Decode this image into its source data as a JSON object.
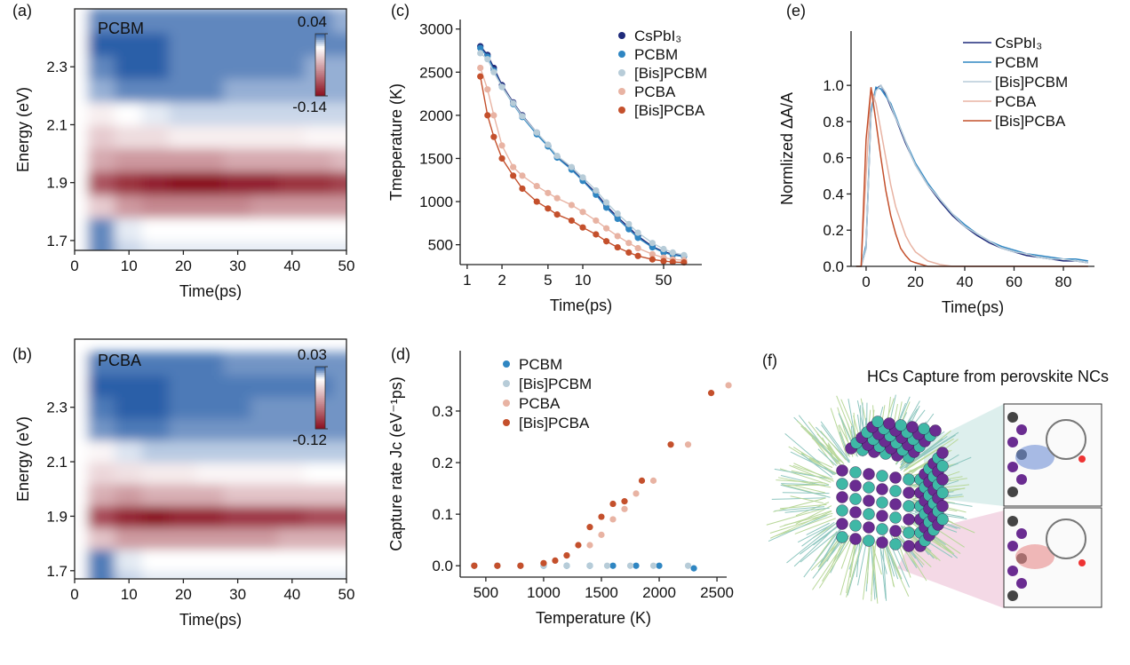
{
  "chart_data": [
    {
      "type": "heatmap",
      "label": "(a)",
      "annotation": "PCBM",
      "xlabel": "Time(ps)",
      "ylabel": "Energy (eV)",
      "x": [
        0,
        5,
        10,
        15,
        20,
        25,
        30,
        35,
        40,
        45,
        50
      ],
      "y": [
        1.66,
        1.74,
        1.82,
        1.9,
        1.98,
        2.06,
        2.14,
        2.22,
        2.3,
        2.38,
        2.46
      ],
      "values": [
        [
          0,
          0.03,
          0.01,
          0.005,
          0.005,
          0.005,
          0.005,
          0.005,
          0.005,
          0.005,
          0.005
        ],
        [
          0,
          0.03,
          0.005,
          0,
          0,
          0,
          0,
          0,
          0,
          0,
          0
        ],
        [
          0,
          -0.03,
          -0.06,
          -0.07,
          -0.07,
          -0.07,
          -0.07,
          -0.06,
          -0.06,
          -0.06,
          -0.06
        ],
        [
          0,
          -0.1,
          -0.12,
          -0.13,
          -0.14,
          -0.14,
          -0.13,
          -0.13,
          -0.12,
          -0.12,
          -0.11
        ],
        [
          0,
          -0.05,
          -0.06,
          -0.06,
          -0.06,
          -0.06,
          -0.05,
          -0.05,
          -0.05,
          -0.05,
          -0.04
        ],
        [
          0,
          -0.03,
          -0.02,
          -0.02,
          -0.01,
          -0.01,
          -0.01,
          -0.01,
          -0.01,
          -0.005,
          -0.005
        ],
        [
          0,
          -0.01,
          0,
          0.005,
          0.01,
          0.01,
          0.01,
          0.01,
          0.01,
          0.01,
          0.01
        ],
        [
          0,
          0.02,
          0.03,
          0.03,
          0.03,
          0.03,
          0.02,
          0.02,
          0.02,
          0.02,
          0.02
        ],
        [
          0,
          0.03,
          0.04,
          0.04,
          0.03,
          0.03,
          0.03,
          0.03,
          0.03,
          0.02,
          0.02
        ],
        [
          0,
          0.04,
          0.04,
          0.04,
          0.03,
          0.03,
          0.03,
          0.03,
          0.03,
          0.03,
          0.03
        ],
        [
          0,
          0.03,
          0.03,
          0.03,
          0.03,
          0.03,
          0.03,
          0.03,
          0.03,
          0.03,
          0.02
        ]
      ],
      "xlim": [
        0,
        50
      ],
      "ylim": [
        1.666,
        2.5
      ],
      "xticks": [
        0,
        10,
        20,
        30,
        40,
        50
      ],
      "yticks": [
        1.7,
        1.9,
        2.1,
        2.3
      ],
      "zlim": [
        -0.14,
        0.04
      ],
      "zticks": [
        0.04,
        -0.14
      ],
      "colors": {
        "positive": "#2b5fa8",
        "negative": "#8a0e1e"
      }
    },
    {
      "type": "heatmap",
      "label": "(b)",
      "annotation": "PCBA",
      "xlabel": "Time(ps)",
      "ylabel": "Energy (eV)",
      "x": [
        0,
        5,
        10,
        15,
        20,
        25,
        30,
        35,
        40,
        45,
        50
      ],
      "y": [
        1.66,
        1.74,
        1.82,
        1.9,
        1.98,
        2.06,
        2.14,
        2.22,
        2.3,
        2.38,
        2.46
      ],
      "values": [
        [
          0,
          0.025,
          0.008,
          0.004,
          0.004,
          0.004,
          0.004,
          0.004,
          0.004,
          0.004,
          0.004
        ],
        [
          0,
          0.025,
          0.004,
          0,
          0,
          0,
          0,
          0,
          0,
          0,
          0
        ],
        [
          0,
          -0.03,
          -0.05,
          -0.05,
          -0.05,
          -0.05,
          -0.05,
          -0.05,
          -0.04,
          -0.04,
          -0.04
        ],
        [
          0,
          -0.09,
          -0.11,
          -0.12,
          -0.11,
          -0.11,
          -0.1,
          -0.1,
          -0.1,
          -0.09,
          -0.09
        ],
        [
          0,
          -0.04,
          -0.05,
          -0.04,
          -0.04,
          -0.04,
          -0.03,
          -0.03,
          -0.03,
          -0.03,
          -0.03
        ],
        [
          0,
          -0.02,
          -0.015,
          -0.01,
          -0.01,
          -0.005,
          -0.005,
          -0.005,
          -0.005,
          0,
          0
        ],
        [
          0,
          -0.005,
          0.005,
          0.01,
          0.01,
          0.01,
          0.01,
          0.01,
          0.01,
          0.01,
          0.01
        ],
        [
          0,
          0.02,
          0.025,
          0.025,
          0.02,
          0.02,
          0.02,
          0.02,
          0.02,
          0.02,
          0.02
        ],
        [
          0,
          0.025,
          0.03,
          0.03,
          0.025,
          0.025,
          0.025,
          0.02,
          0.02,
          0.02,
          0.02
        ],
        [
          0,
          0.03,
          0.03,
          0.03,
          0.025,
          0.025,
          0.025,
          0.025,
          0.025,
          0.025,
          0.02
        ],
        [
          0,
          0.025,
          0.025,
          0.025,
          0.025,
          0.025,
          0.02,
          0.02,
          0.02,
          0.02,
          0.02
        ]
      ],
      "xlim": [
        0,
        50
      ],
      "ylim": [
        1.67,
        2.55
      ],
      "xticks": [
        0,
        10,
        20,
        30,
        40,
        50
      ],
      "yticks": [
        1.7,
        1.9,
        2.1,
        2.3
      ],
      "zlim": [
        -0.12,
        0.03
      ],
      "zticks": [
        0.03,
        -0.12
      ],
      "colors": {
        "positive": "#2b5fa8",
        "negative": "#8a0e1e"
      }
    },
    {
      "type": "scatter",
      "label": "(c)",
      "xlabel": "Time(ps)",
      "ylabel": "Tmeperature  (K)",
      "log_x": true,
      "fit_line": true,
      "x": [
        1.3,
        1.5,
        1.7,
        2,
        2.5,
        3,
        4,
        5,
        6,
        8,
        10,
        13,
        16,
        20,
        25,
        30,
        40,
        50,
        60,
        75
      ],
      "series": [
        {
          "name": "CsPbI₃",
          "color": "#1f2a7a",
          "values": [
            2800,
            2700,
            2550,
            2350,
            2150,
            2000,
            1800,
            1650,
            1520,
            1380,
            1250,
            1100,
            950,
            820,
            700,
            600,
            480,
            420,
            390,
            370
          ]
        },
        {
          "name": "PCBM",
          "color": "#2f86c2",
          "values": [
            2780,
            2680,
            2520,
            2330,
            2130,
            1980,
            1780,
            1640,
            1510,
            1370,
            1240,
            1080,
            930,
            800,
            680,
            580,
            470,
            410,
            380,
            365
          ]
        },
        {
          "name": "[Bis]PCBM",
          "color": "#b7ccd8",
          "values": [
            2720,
            2650,
            2500,
            2330,
            2140,
            1990,
            1800,
            1660,
            1530,
            1400,
            1280,
            1130,
            990,
            860,
            740,
            640,
            520,
            450,
            410,
            380
          ]
        },
        {
          "name": "PCBA",
          "color": "#e8b3a3",
          "values": [
            2550,
            2300,
            2000,
            1650,
            1400,
            1300,
            1180,
            1100,
            1040,
            960,
            880,
            780,
            690,
            600,
            520,
            460,
            390,
            350,
            330,
            320
          ]
        },
        {
          "name": "[Bis]PCBA",
          "color": "#c4502c",
          "values": [
            2450,
            2000,
            1750,
            1500,
            1300,
            1150,
            1000,
            920,
            850,
            780,
            700,
            620,
            540,
            470,
            410,
            370,
            330,
            310,
            300,
            295
          ]
        }
      ],
      "xlim": [
        0.87,
        107
      ],
      "ylim": [
        270,
        3110
      ],
      "xticks": [
        1,
        2,
        5,
        10,
        50
      ],
      "yticks": [
        500,
        1000,
        1500,
        2000,
        2500,
        3000
      ]
    },
    {
      "type": "scatter",
      "label": "(d)",
      "xlabel": "Temperature (K)",
      "ylabel": "Capture rate Jc (eV⁻¹ps)",
      "series": [
        {
          "name": "PCBM",
          "color": "#2f86c2",
          "x": [
            400,
            600,
            800,
            1000,
            1200,
            1400,
            1600,
            1800,
            2000,
            2300
          ],
          "values": [
            0,
            0,
            0,
            0,
            0,
            0,
            0,
            0,
            0,
            -0.005
          ]
        },
        {
          "name": "[Bis]PCBM",
          "color": "#b7ccd8",
          "x": [
            400,
            600,
            800,
            1000,
            1200,
            1400,
            1550,
            1750,
            1950,
            2250
          ],
          "values": [
            0,
            0,
            0,
            0,
            0,
            0,
            0,
            0,
            0,
            0
          ]
        },
        {
          "name": "PCBA",
          "color": "#e8b3a3",
          "x": [
            400,
            600,
            800,
            1000,
            1200,
            1400,
            1500,
            1600,
            1700,
            1800,
            1950,
            2250,
            2600
          ],
          "values": [
            0,
            0,
            0,
            0.005,
            0.02,
            0.04,
            0.06,
            0.09,
            0.11,
            0.14,
            0.165,
            0.235,
            0.35
          ]
        },
        {
          "name": "[Bis]PCBA",
          "color": "#c4502c",
          "x": [
            400,
            600,
            800,
            1000,
            1100,
            1200,
            1300,
            1400,
            1500,
            1600,
            1700,
            1850,
            2100,
            2450
          ],
          "values": [
            0,
            0,
            0,
            0.005,
            0.01,
            0.02,
            0.04,
            0.075,
            0.095,
            0.12,
            0.125,
            0.165,
            0.235,
            0.335
          ]
        }
      ],
      "xlim": [
        278,
        2584
      ],
      "ylim": [
        -0.022,
        0.417
      ],
      "xticks": [
        500,
        1000,
        1500,
        2000,
        2500
      ],
      "yticks": [
        {
          "value": 0,
          "label": "0.0"
        },
        0.1,
        0.2,
        0.3
      ]
    },
    {
      "type": "line",
      "label": "(e)",
      "xlabel": "Time(ps)",
      "ylabel": "Normlized ΔA/A",
      "x": [
        -4,
        -2,
        0,
        2,
        4,
        6,
        8,
        10,
        12,
        14,
        16,
        18,
        20,
        25,
        30,
        35,
        40,
        45,
        50,
        55,
        60,
        65,
        70,
        75,
        80,
        85,
        90
      ],
      "series": [
        {
          "name": "CsPbI₃",
          "color": "#1f2a7a",
          "values": [
            0,
            0,
            0.1,
            0.85,
            0.98,
            1.0,
            0.95,
            0.88,
            0.82,
            0.75,
            0.68,
            0.62,
            0.56,
            0.45,
            0.36,
            0.28,
            0.22,
            0.17,
            0.13,
            0.1,
            0.08,
            0.06,
            0.05,
            0.04,
            0.03,
            0.03,
            0.02
          ]
        },
        {
          "name": "PCBM",
          "color": "#2f86c2",
          "values": [
            0,
            0,
            0.12,
            0.86,
            0.99,
            0.98,
            0.94,
            0.9,
            0.83,
            0.76,
            0.69,
            0.63,
            0.57,
            0.46,
            0.37,
            0.29,
            0.23,
            0.18,
            0.14,
            0.11,
            0.09,
            0.07,
            0.06,
            0.05,
            0.04,
            0.04,
            0.03
          ]
        },
        {
          "name": "[Bis]PCBM",
          "color": "#b7ccd8",
          "values": [
            0,
            0,
            0.1,
            0.84,
            0.97,
            1.0,
            0.96,
            0.89,
            0.82,
            0.76,
            0.69,
            0.62,
            0.56,
            0.45,
            0.37,
            0.29,
            0.22,
            0.18,
            0.14,
            0.1,
            0.08,
            0.07,
            0.05,
            0.04,
            0.04,
            0.03,
            0.02
          ]
        },
        {
          "name": "PCBA",
          "color": "#e8b3a3",
          "values": [
            0,
            0,
            0.5,
            0.98,
            0.9,
            0.75,
            0.6,
            0.45,
            0.33,
            0.25,
            0.17,
            0.12,
            0.08,
            0.03,
            0.01,
            0,
            0,
            0,
            0,
            0,
            0,
            0,
            0,
            0,
            0,
            0,
            0
          ]
        },
        {
          "name": "[Bis]PCBA",
          "color": "#c4502c",
          "values": [
            0,
            0,
            0.7,
            0.99,
            0.8,
            0.6,
            0.42,
            0.28,
            0.18,
            0.1,
            0.06,
            0.03,
            0.02,
            0,
            0,
            0,
            0,
            0,
            0,
            0,
            0,
            0,
            0,
            0,
            0,
            0,
            0
          ]
        }
      ],
      "xlim": [
        -6.1,
        92.6
      ],
      "ylim": [
        0,
        1.3
      ],
      "xticks": [
        0,
        20,
        40,
        60,
        80
      ],
      "yticks": [
        {
          "value": 0,
          "label": "0.0"
        },
        0.2,
        0.4,
        0.6,
        0.8,
        {
          "value": 1,
          "label": "1.0"
        }
      ]
    }
  ],
  "illustration": {
    "label": "(f)",
    "title": "HCs Capture from perovskite NCs"
  }
}
